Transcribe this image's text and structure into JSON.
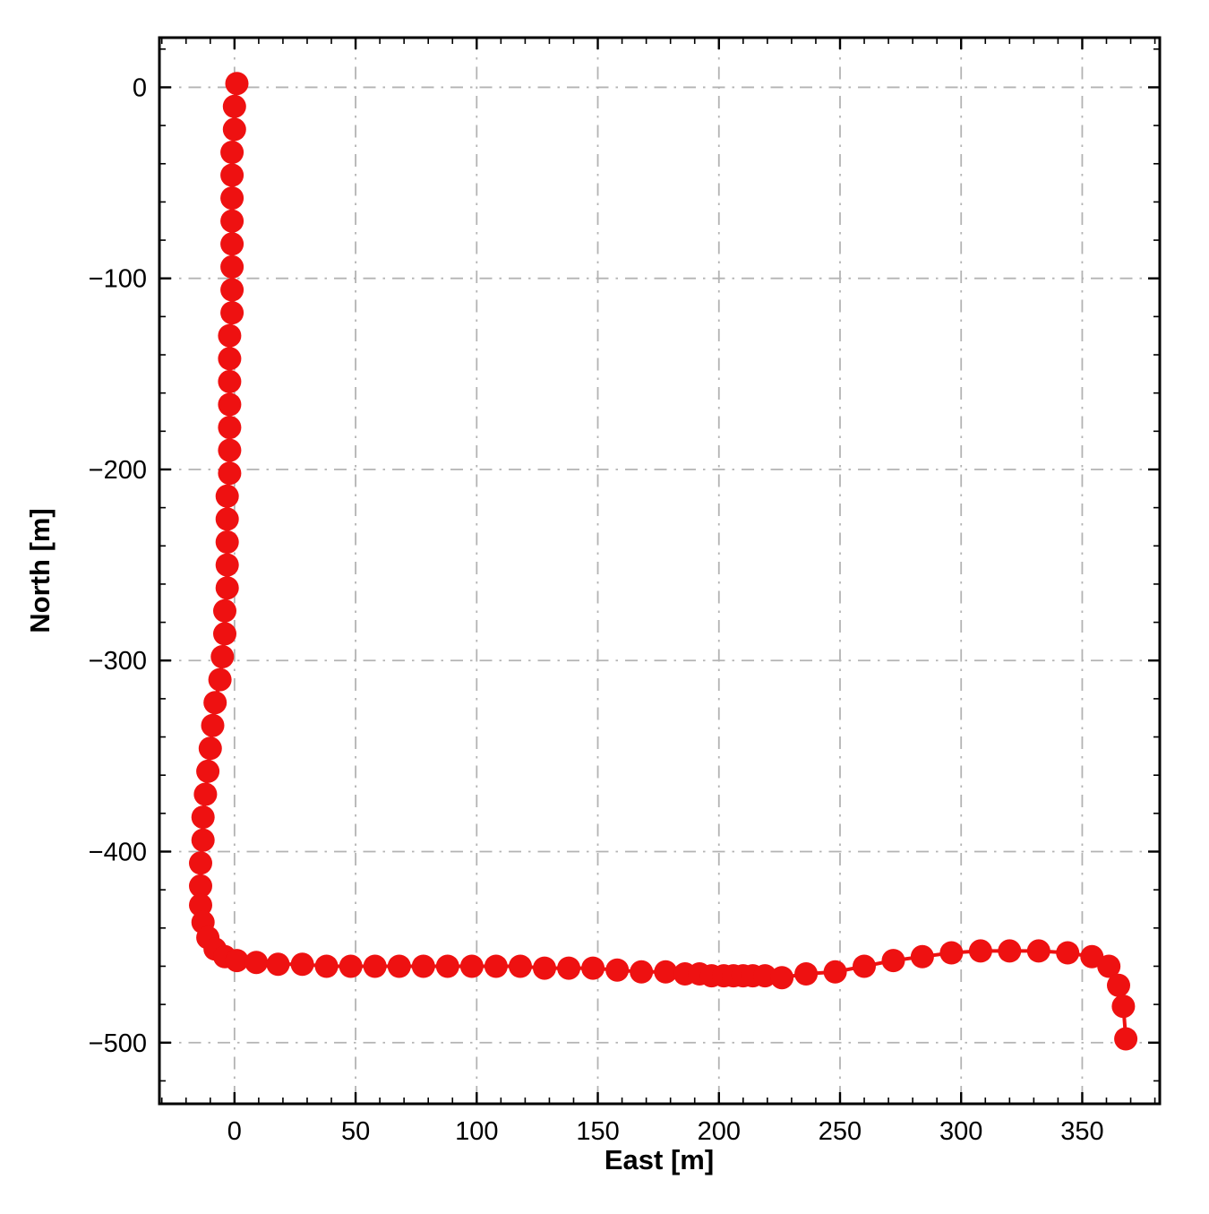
{
  "chart_data": {
    "type": "scatter",
    "title": "",
    "xlabel": "East [m]",
    "ylabel": "North [m]",
    "xlim": [
      -31,
      382
    ],
    "ylim": [
      -532,
      26
    ],
    "xticks": [
      0,
      50,
      100,
      150,
      200,
      250,
      300,
      350
    ],
    "yticks": [
      0,
      -100,
      -200,
      -300,
      -400,
      -500
    ],
    "x_minor_step": 10,
    "y_minor_step": 20,
    "grid": true,
    "grid_style": "dash-dot",
    "legend": "none",
    "marker": "circle",
    "marker_color": "#ee1111",
    "line_color": "#ee1111",
    "grid_color": "#b3b3b3",
    "axis_color": "#000000",
    "points": [
      [
        1,
        2
      ],
      [
        0,
        -10
      ],
      [
        0,
        -22
      ],
      [
        -1,
        -34
      ],
      [
        -1,
        -46
      ],
      [
        -1,
        -58
      ],
      [
        -1,
        -70
      ],
      [
        -1,
        -82
      ],
      [
        -1,
        -94
      ],
      [
        -1,
        -106
      ],
      [
        -1,
        -118
      ],
      [
        -2,
        -130
      ],
      [
        -2,
        -142
      ],
      [
        -2,
        -154
      ],
      [
        -2,
        -166
      ],
      [
        -2,
        -178
      ],
      [
        -2,
        -190
      ],
      [
        -2,
        -202
      ],
      [
        -3,
        -214
      ],
      [
        -3,
        -226
      ],
      [
        -3,
        -238
      ],
      [
        -3,
        -250
      ],
      [
        -3,
        -262
      ],
      [
        -4,
        -274
      ],
      [
        -4,
        -286
      ],
      [
        -5,
        -298
      ],
      [
        -6,
        -310
      ],
      [
        -8,
        -322
      ],
      [
        -9,
        -334
      ],
      [
        -10,
        -346
      ],
      [
        -11,
        -358
      ],
      [
        -12,
        -370
      ],
      [
        -13,
        -382
      ],
      [
        -13,
        -394
      ],
      [
        -14,
        -406
      ],
      [
        -14,
        -418
      ],
      [
        -14,
        -428
      ],
      [
        -13,
        -437
      ],
      [
        -11,
        -445
      ],
      [
        -8,
        -451
      ],
      [
        -4,
        -455
      ],
      [
        1,
        -457
      ],
      [
        9,
        -458
      ],
      [
        18,
        -459
      ],
      [
        28,
        -459
      ],
      [
        38,
        -460
      ],
      [
        48,
        -460
      ],
      [
        58,
        -460
      ],
      [
        68,
        -460
      ],
      [
        78,
        -460
      ],
      [
        88,
        -460
      ],
      [
        98,
        -460
      ],
      [
        108,
        -460
      ],
      [
        118,
        -460
      ],
      [
        128,
        -461
      ],
      [
        138,
        -461
      ],
      [
        148,
        -461
      ],
      [
        158,
        -462
      ],
      [
        168,
        -463
      ],
      [
        178,
        -463
      ],
      [
        186,
        -464
      ],
      [
        192,
        -464
      ],
      [
        197,
        -465
      ],
      [
        202,
        -465
      ],
      [
        206,
        -465
      ],
      [
        210,
        -465
      ],
      [
        214,
        -465
      ],
      [
        219,
        -465
      ],
      [
        226,
        -466
      ],
      [
        236,
        -464
      ],
      [
        248,
        -463
      ],
      [
        260,
        -460
      ],
      [
        272,
        -457
      ],
      [
        284,
        -455
      ],
      [
        296,
        -453
      ],
      [
        308,
        -452
      ],
      [
        320,
        -452
      ],
      [
        332,
        -452
      ],
      [
        344,
        -453
      ],
      [
        354,
        -455
      ],
      [
        361,
        -460
      ],
      [
        365,
        -470
      ],
      [
        367,
        -481
      ],
      [
        368,
        -498
      ]
    ]
  }
}
